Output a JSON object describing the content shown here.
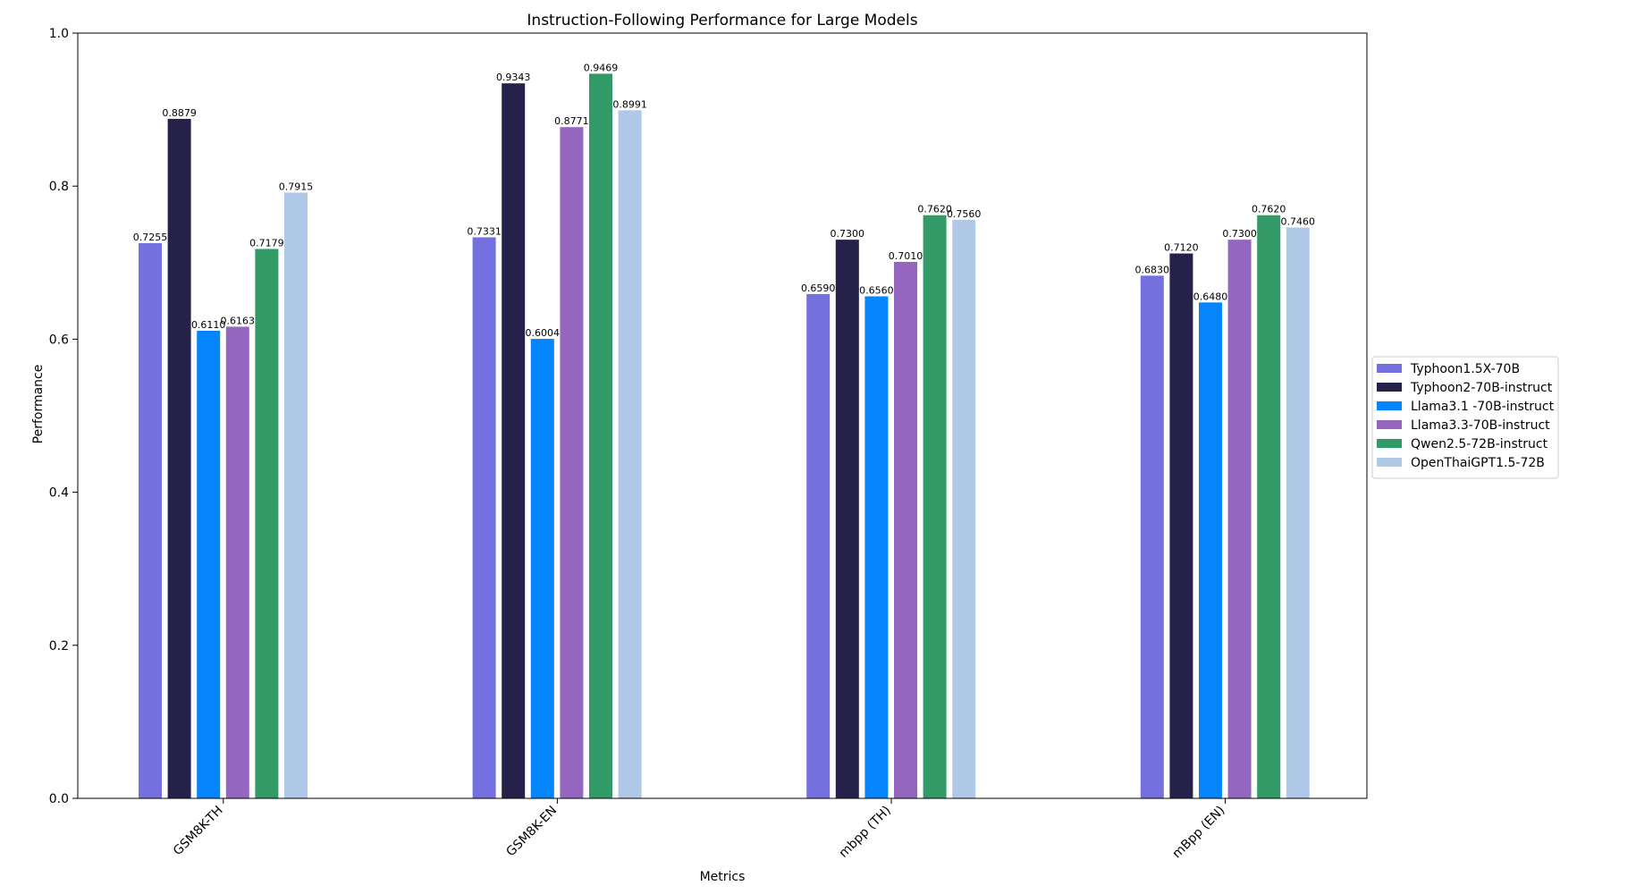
{
  "chart_data": {
    "type": "bar",
    "title": "Instruction-Following Performance for Large Models",
    "xlabel": "Metrics",
    "ylabel": "Performance",
    "ylim": [
      0,
      1.0
    ],
    "yticks": [
      "0.0",
      "0.2",
      "0.4",
      "0.6",
      "0.8",
      "1.0"
    ],
    "categories": [
      "GSM8K-TH",
      "GSM8K-EN",
      "mbpp (TH)",
      "mBpp (EN)"
    ],
    "grid": false,
    "legend_position": "right",
    "series": [
      {
        "name": "Typhoon1.5X-70B",
        "color": "#7570e0",
        "values": [
          0.7255,
          0.7331,
          0.659,
          0.683
        ],
        "labels": [
          "0.7255",
          "0.7331",
          "0.6590",
          "0.6830"
        ]
      },
      {
        "name": "Typhoon2-70B-instruct",
        "color": "#25214a",
        "values": [
          0.8879,
          0.9343,
          0.73,
          0.712
        ],
        "labels": [
          "0.8879",
          "0.9343",
          "0.7300",
          "0.7120"
        ]
      },
      {
        "name": "Llama3.1 -70B-instruct",
        "color": "#0585fc",
        "values": [
          0.611,
          0.6004,
          0.656,
          0.648
        ],
        "labels": [
          "0.6110",
          "0.6004",
          "0.6560",
          "0.6480"
        ]
      },
      {
        "name": "Llama3.3-70B-instruct",
        "color": "#9566bf",
        "values": [
          0.6163,
          0.8771,
          0.701,
          0.73
        ],
        "labels": [
          "0.6163",
          "0.8771",
          "0.7010",
          "0.7300"
        ]
      },
      {
        "name": "Qwen2.5-72B-instruct",
        "color": "#329a66",
        "values": [
          0.7179,
          0.9469,
          0.762,
          0.762
        ],
        "labels": [
          "0.7179",
          "0.9469",
          "0.7620",
          "0.7620"
        ]
      },
      {
        "name": "OpenThaiGPT1.5-72B",
        "color": "#b0c9e8",
        "values": [
          0.7915,
          0.8991,
          0.756,
          0.746
        ],
        "labels": [
          "0.7915",
          "0.8991",
          "0.7560",
          "0.7460"
        ]
      }
    ]
  }
}
